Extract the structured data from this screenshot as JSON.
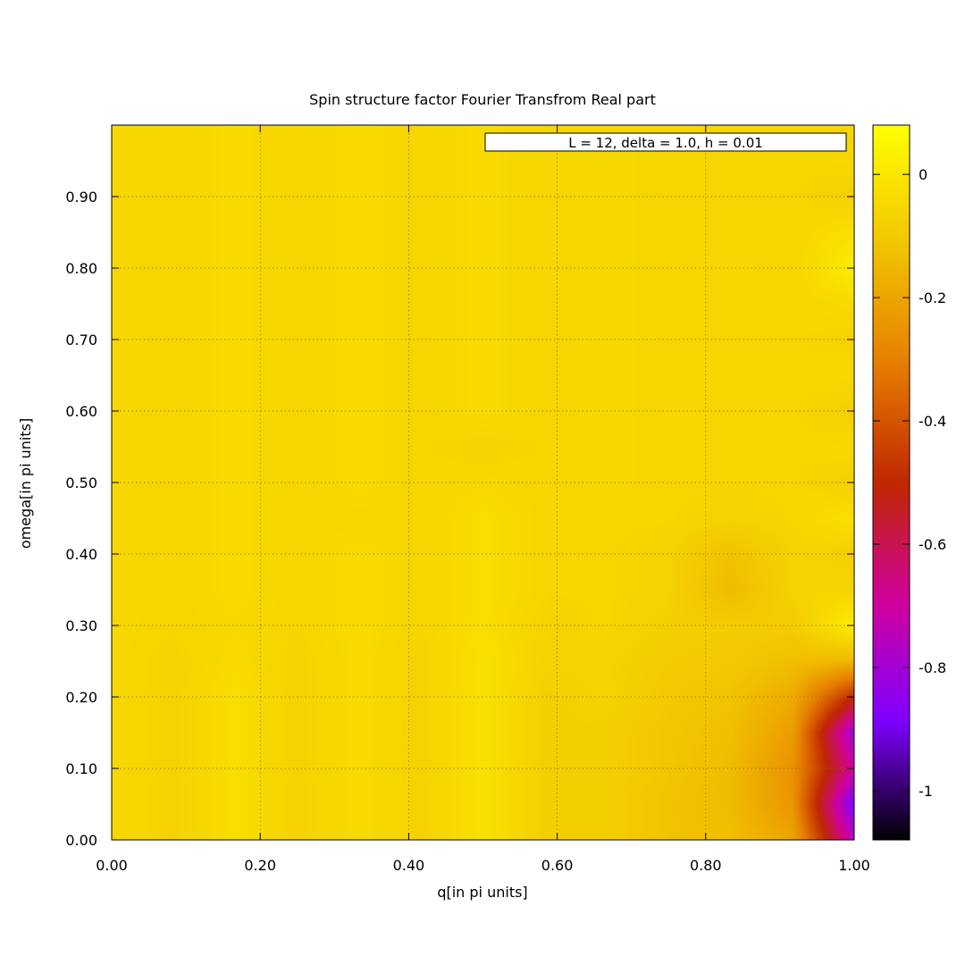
{
  "chart_data": {
    "type": "heatmap",
    "title": "Spin structure factor Fourier Transfrom Real part",
    "xlabel": "q[in pi units]",
    "ylabel": "omega[in pi units]",
    "xlim": [
      0.0,
      1.0
    ],
    "ylim": [
      0.0,
      1.0
    ],
    "grid": true,
    "legend": {
      "label": "L = 12, delta = 1.0, h = 0.01",
      "position": "top-right"
    },
    "x_ticks": [
      "0.00",
      "0.20",
      "0.40",
      "0.60",
      "0.80",
      "1.00"
    ],
    "x_tick_values": [
      0.0,
      0.2,
      0.4,
      0.6,
      0.8,
      1.0
    ],
    "y_ticks": [
      "0.00",
      "0.10",
      "0.20",
      "0.30",
      "0.40",
      "0.50",
      "0.60",
      "0.70",
      "0.80",
      "0.90"
    ],
    "y_tick_values": [
      0.0,
      0.1,
      0.2,
      0.3,
      0.4,
      0.5,
      0.6,
      0.7,
      0.8,
      0.9
    ],
    "colorbar": {
      "range": [
        -1.08,
        0.08
      ],
      "ticks": [
        "-1",
        "-0.8",
        "-0.6",
        "-0.4",
        "-0.2",
        "0"
      ],
      "tick_values": [
        -1.0,
        -0.8,
        -0.6,
        -0.4,
        -0.2,
        0.0
      ],
      "palette": "black-blue-purple-red-orange-yellow",
      "palette_colors": [
        "#000000",
        "#7f00ff",
        "#d0009c",
        "#c02800",
        "#e67e00",
        "#f2c500",
        "#ffff00"
      ]
    },
    "x": [
      0.0,
      0.0833,
      0.1667,
      0.25,
      0.3333,
      0.4167,
      0.5,
      0.5833,
      0.6667,
      0.75,
      0.8333,
      0.9167,
      1.0
    ],
    "y": [
      0.0,
      0.05,
      0.1,
      0.15,
      0.2,
      0.25,
      0.3,
      0.35,
      0.4,
      0.45,
      0.5,
      0.55,
      0.6,
      0.65,
      0.7,
      0.75,
      0.8,
      0.85,
      0.9,
      0.95,
      1.0
    ],
    "z": [
      [
        -0.05,
        -0.07,
        -0.03,
        -0.07,
        -0.04,
        -0.07,
        -0.02,
        -0.08,
        -0.08,
        -0.12,
        -0.13,
        -0.2,
        -0.75
      ],
      [
        -0.05,
        -0.07,
        -0.03,
        -0.07,
        -0.04,
        -0.07,
        -0.02,
        -0.08,
        -0.08,
        -0.12,
        -0.14,
        -0.24,
        -0.9
      ],
      [
        -0.05,
        -0.07,
        -0.03,
        -0.07,
        -0.04,
        -0.07,
        -0.02,
        -0.08,
        -0.08,
        -0.11,
        -0.14,
        -0.25,
        -0.7
      ],
      [
        -0.05,
        -0.07,
        -0.03,
        -0.07,
        -0.04,
        -0.07,
        -0.02,
        -0.08,
        -0.08,
        -0.11,
        -0.13,
        -0.22,
        -0.82
      ],
      [
        -0.05,
        -0.07,
        -0.03,
        -0.07,
        -0.04,
        -0.07,
        -0.02,
        -0.08,
        -0.07,
        -0.1,
        -0.12,
        -0.18,
        -0.5
      ],
      [
        -0.05,
        -0.07,
        -0.04,
        -0.07,
        -0.04,
        -0.07,
        -0.02,
        -0.07,
        -0.07,
        -0.09,
        -0.1,
        -0.13,
        -0.15
      ],
      [
        -0.05,
        -0.06,
        -0.05,
        -0.06,
        -0.04,
        -0.06,
        -0.03,
        -0.07,
        -0.06,
        -0.08,
        -0.09,
        -0.09,
        0.02
      ],
      [
        -0.05,
        -0.06,
        -0.04,
        -0.06,
        -0.04,
        -0.06,
        -0.03,
        -0.06,
        -0.06,
        -0.07,
        -0.14,
        -0.07,
        -0.06
      ],
      [
        -0.05,
        -0.06,
        -0.04,
        -0.06,
        -0.04,
        -0.06,
        -0.03,
        -0.06,
        -0.06,
        -0.07,
        -0.12,
        -0.07,
        -0.08
      ],
      [
        -0.05,
        -0.06,
        -0.04,
        -0.06,
        -0.06,
        -0.06,
        -0.03,
        -0.06,
        -0.06,
        -0.06,
        -0.07,
        -0.06,
        -0.02
      ],
      [
        -0.05,
        -0.06,
        -0.04,
        -0.06,
        -0.04,
        -0.06,
        -0.05,
        -0.06,
        -0.05,
        -0.06,
        -0.06,
        -0.06,
        -0.08
      ],
      [
        -0.05,
        -0.06,
        -0.04,
        -0.06,
        -0.04,
        -0.06,
        -0.07,
        -0.06,
        -0.05,
        -0.06,
        -0.06,
        -0.06,
        -0.05
      ],
      [
        -0.05,
        -0.06,
        -0.04,
        -0.06,
        -0.04,
        -0.06,
        -0.04,
        -0.06,
        -0.05,
        -0.06,
        -0.06,
        -0.06,
        -0.08
      ],
      [
        -0.05,
        -0.06,
        -0.04,
        -0.06,
        -0.04,
        -0.06,
        -0.04,
        -0.06,
        -0.05,
        -0.06,
        -0.06,
        -0.06,
        -0.05
      ],
      [
        -0.05,
        -0.06,
        -0.04,
        -0.06,
        -0.04,
        -0.06,
        -0.04,
        -0.06,
        -0.05,
        -0.06,
        -0.06,
        -0.06,
        -0.07
      ],
      [
        -0.05,
        -0.06,
        -0.04,
        -0.06,
        -0.04,
        -0.06,
        -0.04,
        -0.06,
        -0.05,
        -0.06,
        -0.06,
        -0.06,
        -0.04
      ],
      [
        -0.05,
        -0.06,
        -0.04,
        -0.06,
        -0.04,
        -0.06,
        -0.04,
        -0.06,
        -0.05,
        -0.06,
        -0.06,
        -0.06,
        0.02
      ],
      [
        -0.05,
        -0.06,
        -0.04,
        -0.06,
        -0.04,
        -0.06,
        -0.04,
        -0.06,
        -0.05,
        -0.06,
        -0.06,
        -0.06,
        -0.02
      ],
      [
        -0.05,
        -0.06,
        -0.04,
        -0.06,
        -0.04,
        -0.06,
        -0.04,
        -0.06,
        -0.05,
        -0.06,
        -0.06,
        -0.06,
        -0.08
      ],
      [
        -0.05,
        -0.06,
        -0.04,
        -0.06,
        -0.04,
        -0.06,
        -0.04,
        -0.06,
        -0.05,
        -0.06,
        -0.06,
        -0.06,
        -0.05
      ],
      [
        -0.05,
        -0.06,
        -0.04,
        -0.06,
        -0.04,
        -0.06,
        -0.04,
        -0.06,
        -0.05,
        -0.06,
        -0.06,
        -0.06,
        -0.06
      ]
    ]
  }
}
